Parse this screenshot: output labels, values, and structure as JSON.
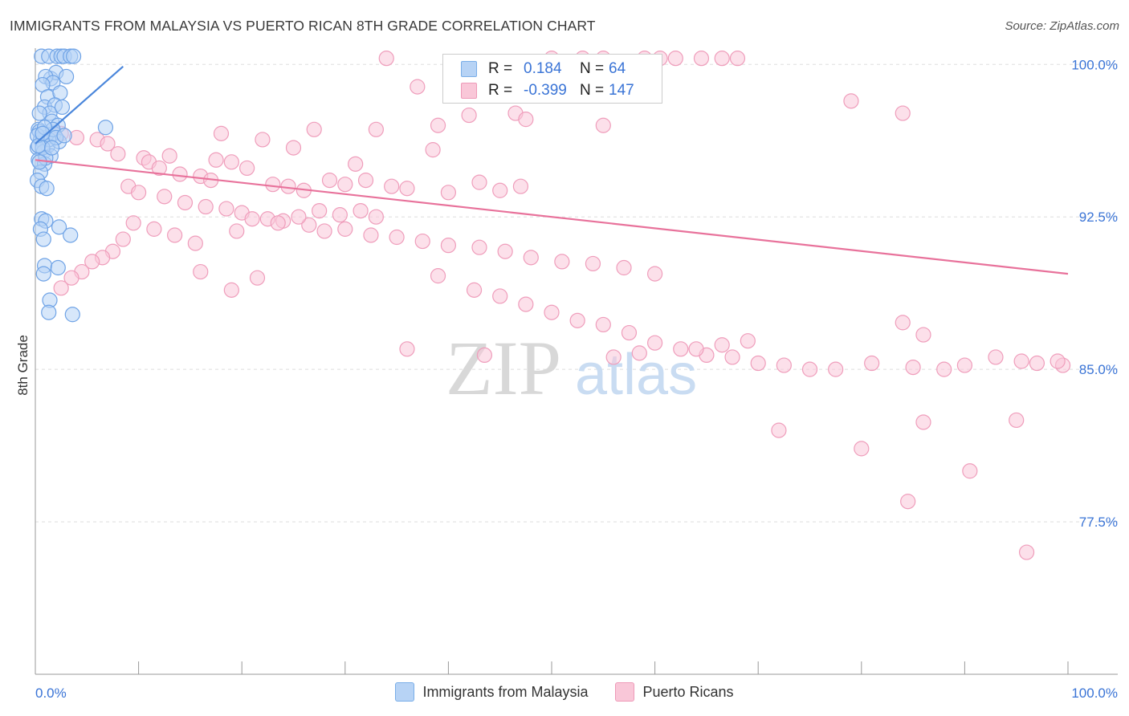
{
  "title": "IMMIGRANTS FROM MALAYSIA VS PUERTO RICAN 8TH GRADE CORRELATION CHART",
  "source": "Source: ZipAtlas.com",
  "watermark": {
    "zip": "ZIP",
    "atlas": "atlas"
  },
  "stats_box": {
    "rows": [
      {
        "r_label": "R =",
        "r_value": "0.184",
        "n_label": "N =",
        "n_value": "64",
        "color": "#7aaee8",
        "fill": "#b7d3f5"
      },
      {
        "r_label": "R =",
        "r_value": "-0.399",
        "n_label": "N =",
        "n_value": "147",
        "color": "#ee9ab8",
        "fill": "#f9c7d8"
      }
    ]
  },
  "legend": [
    {
      "label": "Immigrants from Malaysia",
      "color": "#b7d3f5",
      "border": "#7aaee8"
    },
    {
      "label": "Puerto Ricans",
      "color": "#f9c7d8",
      "border": "#ee9ab8"
    }
  ],
  "chart_data": {
    "type": "scatter",
    "title": "IMMIGRANTS FROM MALAYSIA VS PUERTO RICAN 8TH GRADE CORRELATION CHART",
    "xlabel": "",
    "ylabel": "8th Grade",
    "xlim": [
      0,
      100
    ],
    "ylim": [
      70.0,
      100.8
    ],
    "x_tick_labels": [
      "0.0%",
      "100.0%"
    ],
    "y_ticks": [
      77.5,
      85.0,
      92.5,
      100.0
    ],
    "y_tick_labels": [
      "77.5%",
      "85.0%",
      "92.5%",
      "100.0%"
    ],
    "grid": true,
    "legend_position": "bottom",
    "series": [
      {
        "name": "Immigrants from Malaysia",
        "color": "#4a86db",
        "fill": "#b7d3f5",
        "trend": {
          "x": [
            0.0,
            8.5
          ],
          "y": [
            96.1,
            99.9
          ]
        },
        "points": [
          [
            0.6,
            100.4
          ],
          [
            1.3,
            100.4
          ],
          [
            2.1,
            100.4
          ],
          [
            2.5,
            100.4
          ],
          [
            2.8,
            100.4
          ],
          [
            3.4,
            100.4
          ],
          [
            3.7,
            100.4
          ],
          [
            1.5,
            99.3
          ],
          [
            2.0,
            99.6
          ],
          [
            3.0,
            99.4
          ],
          [
            1.0,
            99.4
          ],
          [
            1.7,
            99.1
          ],
          [
            0.7,
            99.0
          ],
          [
            1.2,
            98.4
          ],
          [
            2.4,
            98.6
          ],
          [
            0.9,
            97.9
          ],
          [
            1.9,
            98.0
          ],
          [
            1.4,
            97.6
          ],
          [
            2.6,
            97.9
          ],
          [
            0.4,
            97.6
          ],
          [
            1.6,
            97.2
          ],
          [
            2.2,
            97.0
          ],
          [
            0.3,
            96.8
          ],
          [
            1.0,
            96.4
          ],
          [
            1.8,
            96.6
          ],
          [
            0.5,
            96.3
          ],
          [
            1.2,
            96.0
          ],
          [
            2.3,
            96.2
          ],
          [
            0.2,
            95.9
          ],
          [
            0.8,
            95.7
          ],
          [
            1.5,
            95.5
          ],
          [
            0.3,
            95.3
          ],
          [
            0.9,
            95.1
          ],
          [
            0.5,
            94.7
          ],
          [
            0.2,
            94.3
          ],
          [
            0.6,
            94.0
          ],
          [
            1.1,
            93.9
          ],
          [
            0.4,
            96.7
          ],
          [
            1.3,
            96.3
          ],
          [
            0.7,
            95.9
          ],
          [
            0.2,
            96.5
          ],
          [
            1.7,
            96.8
          ],
          [
            0.9,
            96.9
          ],
          [
            6.8,
            96.9
          ],
          [
            1.0,
            95.4
          ],
          [
            0.4,
            95.2
          ],
          [
            2.0,
            96.4
          ],
          [
            0.6,
            92.4
          ],
          [
            1.0,
            92.3
          ],
          [
            0.5,
            91.9
          ],
          [
            2.3,
            92.0
          ],
          [
            3.4,
            91.6
          ],
          [
            0.8,
            91.4
          ],
          [
            0.9,
            90.1
          ],
          [
            2.2,
            90.0
          ],
          [
            0.8,
            89.7
          ],
          [
            1.4,
            88.4
          ],
          [
            1.3,
            87.8
          ],
          [
            3.6,
            87.7
          ],
          [
            0.3,
            96.0
          ],
          [
            1.6,
            95.9
          ],
          [
            0.7,
            96.6
          ],
          [
            2.8,
            96.5
          ]
        ]
      },
      {
        "name": "Puerto Ricans",
        "color": "#e8729b",
        "fill": "#f9c7d8",
        "trend": {
          "x": [
            0.0,
            100.0
          ],
          "y": [
            95.3,
            89.7
          ]
        },
        "points": [
          [
            34.0,
            100.3
          ],
          [
            50.0,
            100.3
          ],
          [
            53.0,
            100.3
          ],
          [
            55.0,
            100.3
          ],
          [
            59.0,
            100.3
          ],
          [
            60.5,
            100.3
          ],
          [
            62.0,
            100.3
          ],
          [
            64.5,
            100.3
          ],
          [
            66.5,
            100.3
          ],
          [
            68.0,
            100.3
          ],
          [
            37.0,
            98.9
          ],
          [
            48.0,
            99.2
          ],
          [
            79.0,
            98.2
          ],
          [
            84.0,
            97.6
          ],
          [
            42.0,
            97.5
          ],
          [
            46.5,
            97.6
          ],
          [
            47.5,
            97.3
          ],
          [
            39.0,
            97.0
          ],
          [
            55.0,
            97.0
          ],
          [
            33.0,
            96.8
          ],
          [
            27.0,
            96.8
          ],
          [
            18.0,
            96.6
          ],
          [
            2.5,
            96.6
          ],
          [
            4.0,
            96.4
          ],
          [
            6.0,
            96.3
          ],
          [
            7.0,
            96.1
          ],
          [
            22.0,
            96.3
          ],
          [
            25.0,
            95.9
          ],
          [
            38.5,
            95.8
          ],
          [
            31.0,
            95.1
          ],
          [
            13.0,
            95.5
          ],
          [
            17.5,
            95.3
          ],
          [
            19.0,
            95.2
          ],
          [
            20.5,
            94.9
          ],
          [
            8.0,
            95.6
          ],
          [
            10.5,
            95.4
          ],
          [
            11.0,
            95.2
          ],
          [
            12.0,
            94.9
          ],
          [
            14.0,
            94.6
          ],
          [
            16.0,
            94.5
          ],
          [
            17.0,
            94.3
          ],
          [
            23.0,
            94.1
          ],
          [
            24.5,
            94.0
          ],
          [
            26.0,
            93.8
          ],
          [
            28.5,
            94.3
          ],
          [
            30.0,
            94.1
          ],
          [
            32.0,
            94.3
          ],
          [
            34.5,
            94.0
          ],
          [
            36.0,
            93.9
          ],
          [
            40.0,
            93.7
          ],
          [
            43.0,
            94.2
          ],
          [
            45.0,
            93.8
          ],
          [
            47.0,
            94.0
          ],
          [
            9.0,
            94.0
          ],
          [
            10.0,
            93.7
          ],
          [
            12.5,
            93.5
          ],
          [
            14.5,
            93.2
          ],
          [
            16.5,
            93.0
          ],
          [
            18.5,
            92.9
          ],
          [
            20.0,
            92.7
          ],
          [
            22.5,
            92.4
          ],
          [
            24.0,
            92.3
          ],
          [
            26.5,
            92.1
          ],
          [
            28.0,
            91.8
          ],
          [
            30.0,
            91.9
          ],
          [
            32.5,
            91.6
          ],
          [
            35.0,
            91.5
          ],
          [
            37.5,
            91.3
          ],
          [
            40.0,
            91.1
          ],
          [
            43.0,
            91.0
          ],
          [
            45.5,
            90.8
          ],
          [
            48.0,
            90.5
          ],
          [
            51.0,
            90.3
          ],
          [
            54.0,
            90.2
          ],
          [
            57.0,
            90.0
          ],
          [
            60.0,
            89.7
          ],
          [
            25.5,
            92.5
          ],
          [
            27.5,
            92.8
          ],
          [
            29.5,
            92.6
          ],
          [
            31.5,
            92.8
          ],
          [
            33.0,
            92.5
          ],
          [
            21.0,
            92.4
          ],
          [
            23.5,
            92.2
          ],
          [
            19.5,
            91.8
          ],
          [
            15.5,
            91.2
          ],
          [
            13.5,
            91.6
          ],
          [
            11.5,
            91.9
          ],
          [
            9.5,
            92.2
          ],
          [
            8.5,
            91.4
          ],
          [
            7.5,
            90.8
          ],
          [
            6.5,
            90.5
          ],
          [
            5.5,
            90.3
          ],
          [
            4.5,
            89.8
          ],
          [
            3.5,
            89.5
          ],
          [
            2.5,
            89.0
          ],
          [
            16.0,
            89.8
          ],
          [
            19.0,
            88.9
          ],
          [
            21.5,
            89.5
          ],
          [
            39.0,
            89.6
          ],
          [
            42.5,
            88.9
          ],
          [
            45.0,
            88.6
          ],
          [
            47.5,
            88.2
          ],
          [
            50.0,
            87.8
          ],
          [
            52.5,
            87.4
          ],
          [
            55.0,
            87.2
          ],
          [
            57.5,
            86.8
          ],
          [
            60.0,
            86.3
          ],
          [
            62.5,
            86.0
          ],
          [
            65.0,
            85.7
          ],
          [
            67.5,
            85.6
          ],
          [
            70.0,
            85.3
          ],
          [
            72.5,
            85.2
          ],
          [
            75.0,
            85.0
          ],
          [
            77.5,
            85.0
          ],
          [
            81.0,
            85.3
          ],
          [
            85.0,
            85.1
          ],
          [
            88.0,
            85.0
          ],
          [
            90.0,
            85.2
          ],
          [
            93.0,
            85.6
          ],
          [
            95.5,
            85.4
          ],
          [
            97.0,
            85.3
          ],
          [
            99.5,
            85.2
          ],
          [
            36.0,
            86.0
          ],
          [
            43.5,
            85.7
          ],
          [
            56.0,
            85.6
          ],
          [
            58.5,
            85.8
          ],
          [
            64.0,
            86.0
          ],
          [
            66.5,
            86.2
          ],
          [
            69.0,
            86.4
          ],
          [
            86.0,
            86.7
          ],
          [
            84.0,
            87.3
          ],
          [
            99.0,
            85.4
          ],
          [
            80.0,
            81.1
          ],
          [
            86.0,
            82.4
          ],
          [
            95.0,
            82.5
          ],
          [
            72.0,
            82.0
          ],
          [
            90.5,
            80.0
          ],
          [
            84.5,
            78.5
          ],
          [
            96.0,
            76.0
          ]
        ]
      }
    ]
  }
}
